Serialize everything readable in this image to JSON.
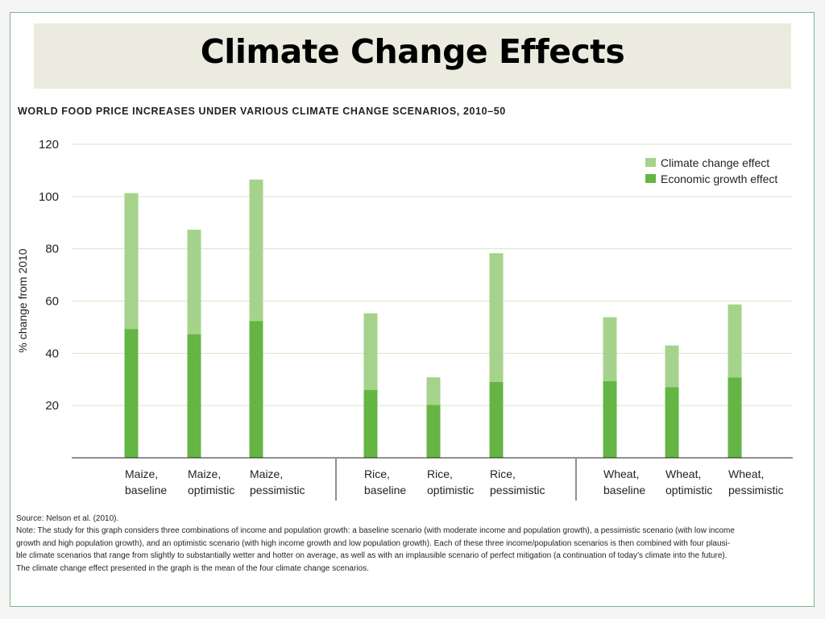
{
  "slide": {
    "title": "Climate Change Effects"
  },
  "colors": {
    "climate_change_effect": "#a6d38b",
    "economic_growth_effect": "#65b545",
    "gridline": "#d8e6c4",
    "axis": "#231f20",
    "frame": "#7fb48a",
    "title_band": "#ecebe0"
  },
  "chart_data": {
    "type": "bar",
    "stacked": true,
    "title": "WORLD FOOD PRICE INCREASES UNDER VARIOUS CLIMATE CHANGE SCENARIOS, 2010–50",
    "ylabel": "% change from 2010",
    "xlabel": "",
    "ylim": [
      0,
      120
    ],
    "yticks": [
      20,
      40,
      60,
      80,
      100,
      120
    ],
    "grid": true,
    "legend_position": "top-right",
    "categories": [
      [
        "Maize,",
        "baseline"
      ],
      [
        "Maize,",
        "optimistic"
      ],
      [
        "Maize,",
        "pessimistic"
      ],
      [
        "Rice,",
        "baseline"
      ],
      [
        "Rice,",
        "optimistic"
      ],
      [
        "Rice,",
        "pessimistic"
      ],
      [
        "Wheat,",
        "baseline"
      ],
      [
        "Wheat,",
        "optimistic"
      ],
      [
        "Wheat,",
        "pessimistic"
      ]
    ],
    "groups": [
      "Maize",
      "Rice",
      "Wheat"
    ],
    "series": [
      {
        "name": "Economic growth effect",
        "values": [
          49.3,
          47.3,
          52.3,
          26,
          20.2,
          29,
          29.3,
          27,
          30.7
        ]
      },
      {
        "name": "Climate change effect",
        "values": [
          52,
          40,
          54.2,
          29.3,
          10.6,
          49.3,
          24.5,
          16,
          28
        ]
      }
    ],
    "legend": [
      "Climate change effect",
      "Economic growth effect"
    ]
  },
  "caption": {
    "source": "Source: Nelson et al. (2010).",
    "note_lines": [
      "Note: The study for this graph considers three combinations of income and population growth: a baseline scenario (with moderate income and population growth), a pessimistic scenario (with low income",
      "growth and high population growth), and an optimistic scenario (with high income growth and low population growth). Each of these three income/population scenarios is then combined with four plausi-",
      "ble climate scenarios that range from slightly to substantially wetter and hotter on average, as well as with an implausible scenario of perfect mitigation (a continuation of today’s climate into the future).",
      "The climate change effect presented in the graph is the mean of the four climate change scenarios."
    ]
  }
}
